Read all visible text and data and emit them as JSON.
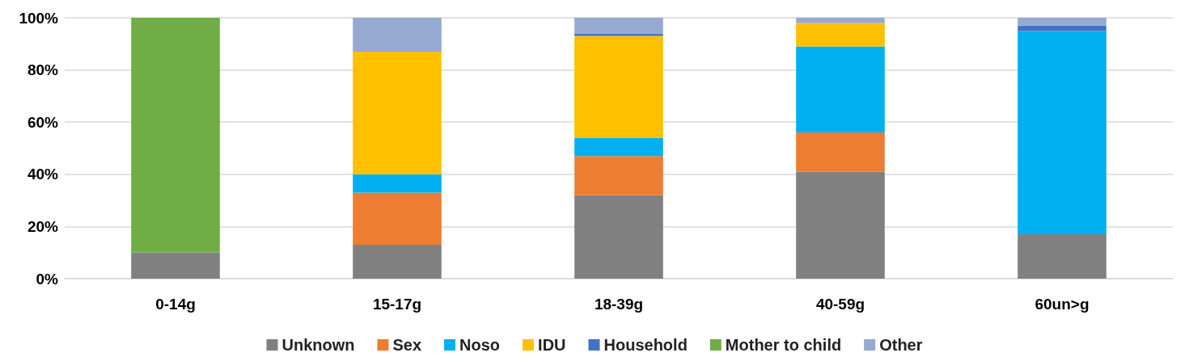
{
  "chart_data": {
    "type": "bar",
    "stacked": true,
    "categories": [
      "0-14g",
      "15-17g",
      "18-39g",
      "40-59g",
      "60un>g"
    ],
    "series": [
      {
        "name": "Unknown",
        "color": "#808080",
        "values": [
          10,
          13,
          32,
          41,
          17
        ]
      },
      {
        "name": "Sex",
        "color": "#ed7d31",
        "values": [
          0,
          20,
          15,
          15,
          0
        ]
      },
      {
        "name": "Noso",
        "color": "#00b0f0",
        "values": [
          0,
          7,
          7,
          33,
          78
        ]
      },
      {
        "name": "IDU",
        "color": "#ffc000",
        "values": [
          0,
          47,
          39,
          9,
          0
        ]
      },
      {
        "name": "Household",
        "color": "#4472c4",
        "values": [
          0,
          0,
          1,
          0,
          2
        ]
      },
      {
        "name": "Mother to child",
        "color": "#70ad47",
        "values": [
          90,
          0,
          0,
          0,
          0
        ]
      },
      {
        "name": "Other",
        "color": "#95a9d1",
        "values": [
          0,
          13,
          6,
          2,
          3
        ]
      }
    ],
    "ylim": [
      0,
      100
    ],
    "yticks": [
      {
        "value": 0,
        "label": "0%"
      },
      {
        "value": 20,
        "label": "20%"
      },
      {
        "value": 40,
        "label": "40%"
      },
      {
        "value": 60,
        "label": "60%"
      },
      {
        "value": 80,
        "label": "80%"
      },
      {
        "value": 100,
        "label": "100%"
      }
    ],
    "grid": "y",
    "legend": "bottom"
  }
}
